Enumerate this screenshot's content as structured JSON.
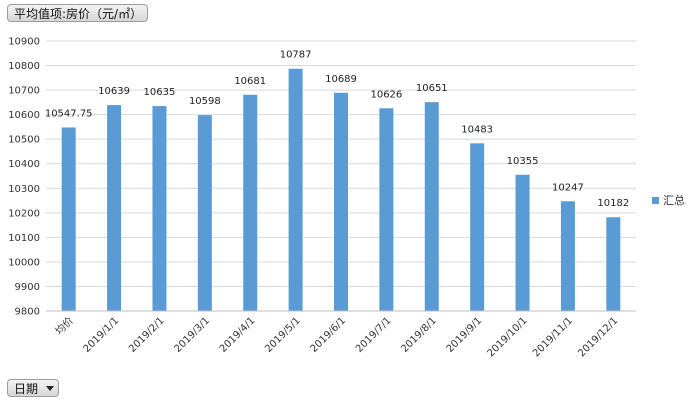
{
  "value_field": {
    "label": "平均值项:房价（元/㎡）"
  },
  "date_field": {
    "label": "日期",
    "icon": "dropdown-arrow-icon"
  },
  "chart_data": {
    "type": "bar",
    "categories": [
      "均价",
      "2019/1/1",
      "2019/2/1",
      "2019/3/1",
      "2019/4/1",
      "2019/5/1",
      "2019/6/1",
      "2019/7/1",
      "2019/8/1",
      "2019/9/1",
      "2019/10/1",
      "2019/11/1",
      "2019/12/1"
    ],
    "series": [
      {
        "name": "汇总",
        "color": "#5b9bd5",
        "values": [
          10547.75,
          10639,
          10635,
          10598,
          10681,
          10787,
          10689,
          10626,
          10651,
          10483,
          10355,
          10247,
          10182
        ]
      }
    ],
    "data_labels": [
      "10547.75",
      "10639",
      "10635",
      "10598",
      "10681",
      "10787",
      "10689",
      "10626",
      "10651",
      "10483",
      "10355",
      "10247",
      "10182"
    ],
    "ylim": [
      9800,
      10900
    ],
    "yticks": [
      9800,
      9900,
      10000,
      10100,
      10200,
      10300,
      10400,
      10500,
      10600,
      10700,
      10800,
      10900
    ],
    "grid": true,
    "legend": "right"
  }
}
